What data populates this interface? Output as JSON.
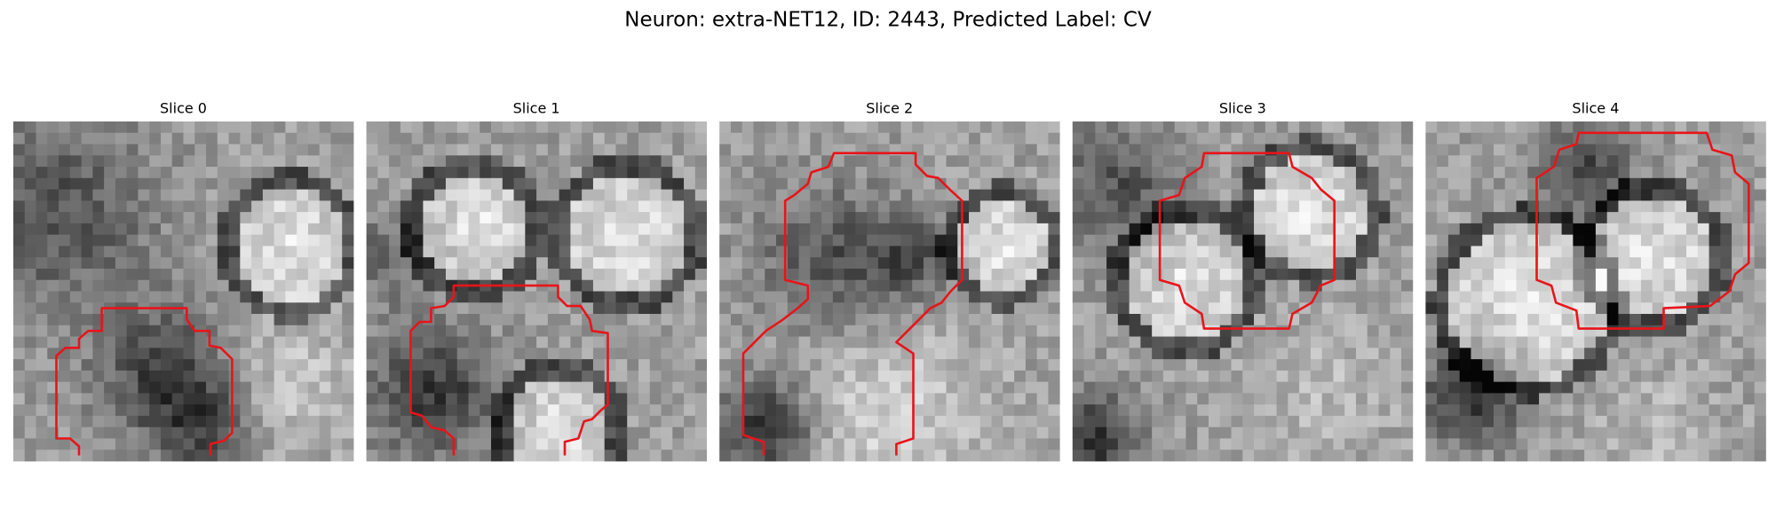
{
  "title": "Neuron: extra-NET12, ID: 2443, Predicted Label: CV",
  "panels": [
    {
      "label": "Slice 0"
    },
    {
      "label": "Slice 1"
    },
    {
      "label": "Slice 2"
    },
    {
      "label": "Slice 3"
    },
    {
      "label": "Slice 4"
    }
  ]
}
